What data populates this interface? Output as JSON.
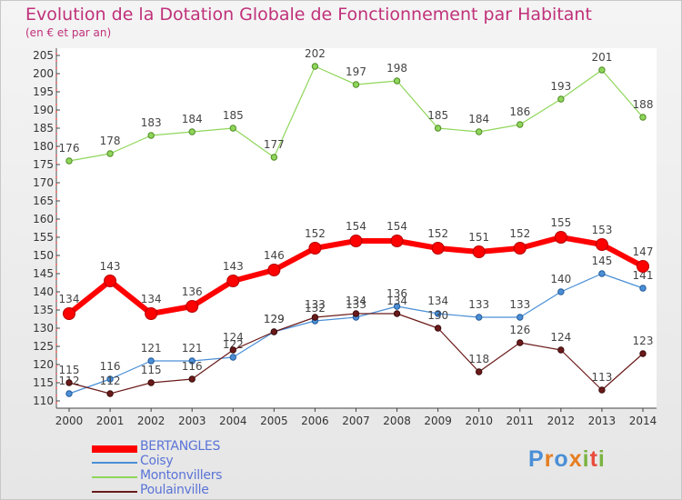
{
  "title": "Evolution de la Dotation Globale de Fonctionnement par Habitant",
  "subtitle": "(en € et par an)",
  "logo": [
    "P",
    "r",
    "o",
    "x",
    "i",
    "t",
    "i"
  ],
  "chart_data": {
    "type": "line",
    "title": "Evolution de la Dotation Globale de Fonctionnement par Habitant",
    "subtitle": "(en € et par an)",
    "x": [
      "2000",
      "2001",
      "2002",
      "2003",
      "2004",
      "2005",
      "2006",
      "2007",
      "2008",
      "2009",
      "2010",
      "2011",
      "2012",
      "2013",
      "2014"
    ],
    "ylim": [
      110,
      205
    ],
    "yticks": [
      110,
      115,
      120,
      125,
      130,
      135,
      140,
      145,
      150,
      155,
      160,
      165,
      170,
      175,
      180,
      185,
      190,
      195,
      200,
      205
    ],
    "grid": false,
    "legend_position": "bottom-left",
    "series": [
      {
        "name": "BERTANGLES",
        "color": "#ff0000",
        "values": [
          134,
          143,
          134,
          136,
          143,
          146,
          152,
          154,
          154,
          152,
          151,
          152,
          155,
          153,
          147
        ]
      },
      {
        "name": "Coisy",
        "color": "#4a8fd6",
        "values": [
          112,
          116,
          121,
          121,
          122,
          129,
          132,
          133,
          136,
          134,
          133,
          133,
          140,
          145,
          141
        ]
      },
      {
        "name": "Montonvillers",
        "color": "#8fd65a",
        "values": [
          176,
          178,
          183,
          184,
          185,
          177,
          202,
          197,
          198,
          185,
          184,
          186,
          193,
          201,
          188
        ]
      },
      {
        "name": "Poulainville",
        "color": "#6b1a1a",
        "values": [
          115,
          112,
          115,
          116,
          124,
          129,
          133,
          134,
          134,
          130,
          118,
          126,
          124,
          113,
          123
        ]
      }
    ],
    "data_labels": {
      "BERTANGLES": [
        "134",
        "143",
        "134",
        "136",
        "143",
        "146",
        "152",
        "154",
        "154",
        "152",
        "151",
        "152",
        "155",
        "153",
        "147"
      ],
      "Coisy": [
        "112",
        "116",
        "121",
        "121",
        "122",
        "129",
        "132",
        "133",
        "136",
        "134",
        "133",
        "133",
        "140",
        "145",
        "141"
      ],
      "Montonvillers": [
        "176",
        "178",
        "183",
        "184",
        "185",
        "177",
        "202",
        "197",
        "198",
        "185",
        "184",
        "186",
        "193",
        "201",
        "188"
      ],
      "Poulainville": [
        "115",
        "112",
        "115",
        "116",
        "124",
        "129",
        "133",
        "134",
        "134",
        "130",
        "118",
        "126",
        "124",
        "113",
        "123"
      ]
    }
  }
}
